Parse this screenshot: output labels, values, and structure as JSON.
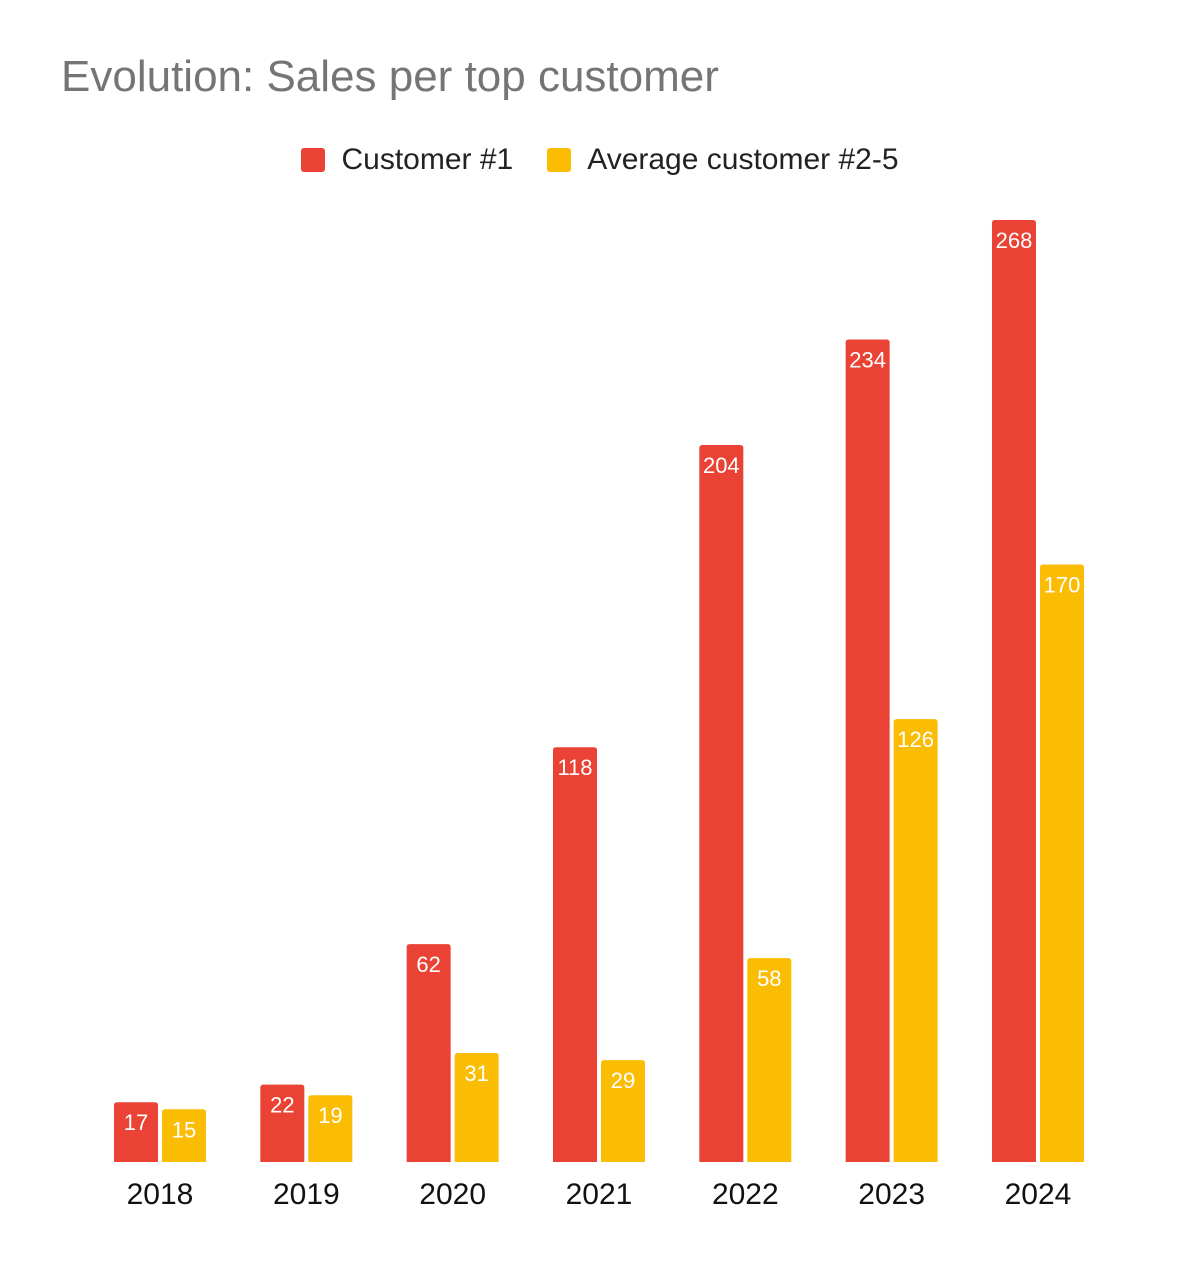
{
  "chart_data": {
    "type": "bar",
    "title": "Evolution: Sales per top customer",
    "xlabel": "",
    "ylabel": "",
    "categories": [
      "2018",
      "2019",
      "2020",
      "2021",
      "2022",
      "2023",
      "2024"
    ],
    "series": [
      {
        "name": "Customer #1",
        "color": "#EA4335",
        "values": [
          17,
          22,
          62,
          118,
          204,
          234,
          268
        ]
      },
      {
        "name": "Average customer #2-5",
        "color": "#FBBC04",
        "values": [
          15,
          19,
          31,
          29,
          58,
          126,
          170
        ]
      }
    ],
    "ylim": [
      0,
      268
    ],
    "grid": false,
    "legend_position": "top-center",
    "data_labels": true,
    "data_label_color": "#FFFFFF"
  }
}
